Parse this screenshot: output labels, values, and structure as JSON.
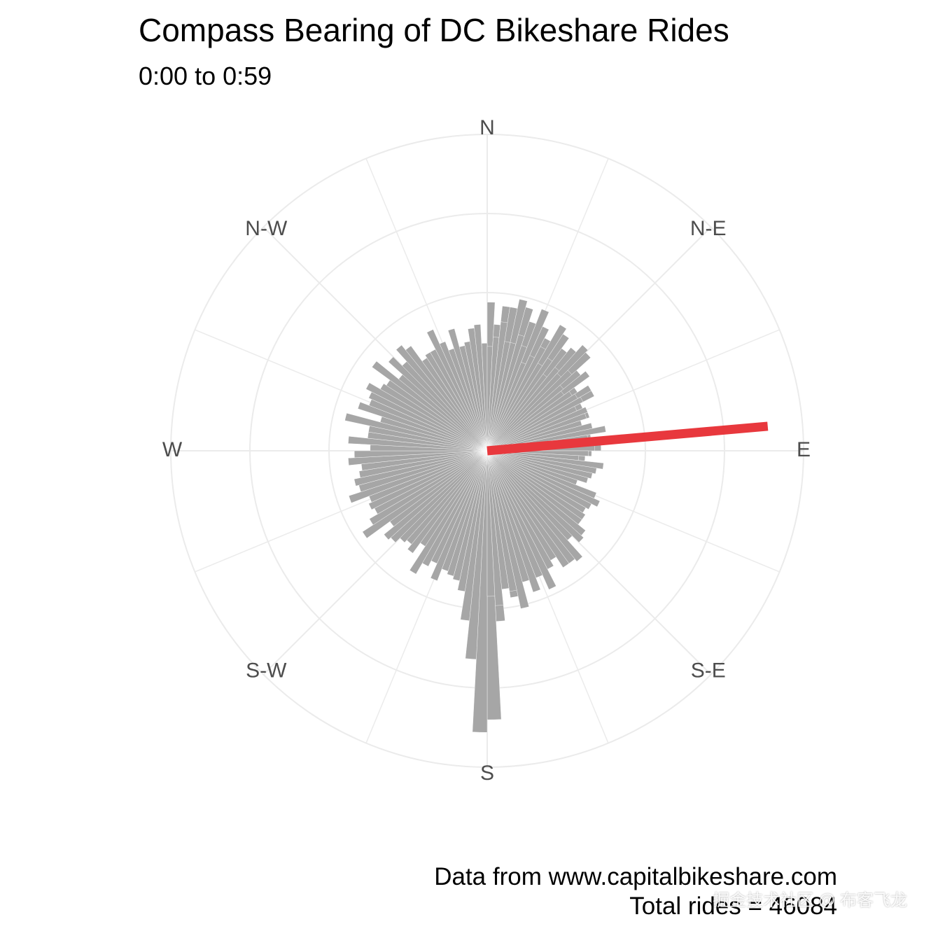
{
  "title": "Compass Bearing of DC Bikeshare Rides",
  "subtitle": "0:00 to 0:59",
  "caption_source": "Data from www.capitalbikeshare.com",
  "caption_total": "Total rides =  46084",
  "watermark": "掘金技术社区 @ 布客飞龙",
  "colors": {
    "bar": "#a6a6a6",
    "mean_line": "#e8383d",
    "grid": "#ebebeb",
    "label": "#4d4d4d"
  },
  "chart_data": {
    "type": "polar-bar",
    "title": "Compass Bearing of DC Bikeshare Rides",
    "subtitle": "0:00 to 0:59",
    "direction_labels": [
      {
        "label": "N",
        "angle": 0
      },
      {
        "label": "N-E",
        "angle": 45
      },
      {
        "label": "E",
        "angle": 90
      },
      {
        "label": "S-E",
        "angle": 135
      },
      {
        "label": "S",
        "angle": 180
      },
      {
        "label": "S-W",
        "angle": 225
      },
      {
        "label": "W",
        "angle": 270
      },
      {
        "label": "N-W",
        "angle": 315
      }
    ],
    "bin_width_degrees": 3,
    "radial_grid_fractions": [
      0.25,
      0.5,
      0.75,
      1.0
    ],
    "values_as_fraction_of_outer_ring": [
      0.47,
      0.4,
      0.46,
      0.46,
      0.49,
      0.47,
      0.43,
      0.48,
      0.43,
      0.4,
      0.46,
      0.44,
      0.4,
      0.42,
      0.45,
      0.44,
      0.38,
      0.4,
      0.34,
      0.38,
      0.38,
      0.33,
      0.33,
      0.34,
      0.3,
      0.34,
      0.3,
      0.33,
      0.32,
      0.36,
      0.33,
      0.31,
      0.28,
      0.34,
      0.31,
      0.3,
      0.29,
      0.28,
      0.28,
      0.3,
      0.28,
      0.32,
      0.34,
      0.36,
      0.35,
      0.32,
      0.37,
      0.3,
      0.34,
      0.3,
      0.33,
      0.28,
      0.32,
      0.37,
      0.4,
      0.37,
      0.47,
      0.42,
      0.54,
      0.85,
      0.89,
      0.66,
      0.54,
      0.45,
      0.42,
      0.41,
      0.4,
      0.44,
      0.39,
      0.41,
      0.45,
      0.36,
      0.4,
      0.38,
      0.39,
      0.41,
      0.42,
      0.38,
      0.47,
      0.43,
      0.4,
      0.41,
      0.4,
      0.46,
      0.42,
      0.43,
      0.41,
      0.4,
      0.44,
      0.42,
      0.37,
      0.44,
      0.38,
      0.38,
      0.46,
      0.35,
      0.43,
      0.4,
      0.41,
      0.43,
      0.39,
      0.38,
      0.45,
      0.36,
      0.42,
      0.38,
      0.43,
      0.41,
      0.35,
      0.36,
      0.36,
      0.42,
      0.37,
      0.34,
      0.4,
      0.34,
      0.35,
      0.39,
      0.4,
      0.34,
      0.33,
      0.36,
      0.41,
      0.35,
      0.35,
      0.38,
      0.35,
      0.3,
      0.33,
      0.37,
      0.32,
      0.35,
      0.3,
      0.34,
      0.33,
      0.36,
      0.31,
      0.3,
      0.32,
      0.33,
      0.34,
      0.31,
      0.34,
      0.33,
      0.31,
      0.34,
      0.38,
      0.32,
      0.29,
      0.34,
      0.32,
      0.29,
      0.37,
      0.35,
      0.34,
      0.33,
      0.3,
      0.37,
      0.39,
      0.37,
      0.36,
      0.37,
      0.37,
      0.4,
      0.41,
      0.38,
      0.45,
      0.44,
      0.44,
      0.4,
      0.42,
      0.48,
      0.43,
      0.47,
      0.43,
      0.51,
      0.45,
      0.44,
      0.49,
      0.46
    ],
    "mean_bearing_degrees": 85,
    "mean_line_length_fraction": 0.89
  }
}
